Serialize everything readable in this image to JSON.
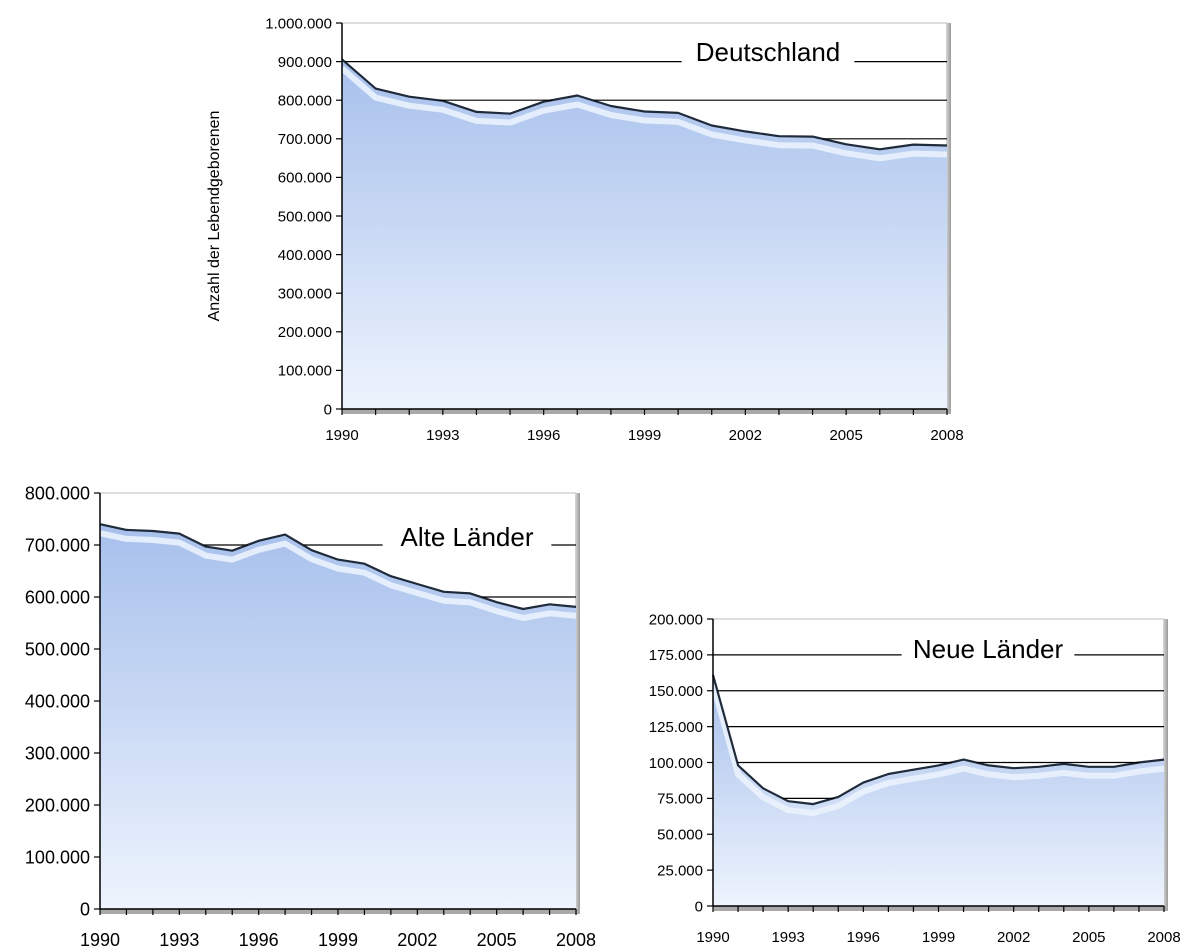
{
  "chart_data": [
    {
      "type": "area",
      "title": "Deutschland",
      "ylabel": "Anzahl der Lebendgeborenen",
      "xlabel": "",
      "ylim": [
        0,
        1000000
      ],
      "yticks": [
        0,
        100000,
        200000,
        300000,
        400000,
        500000,
        600000,
        700000,
        800000,
        900000,
        1000000
      ],
      "ytick_labels": [
        "0",
        "100.000",
        "200.000",
        "300.000",
        "400.000",
        "500.000",
        "600.000",
        "700.000",
        "800.000",
        "900.000",
        "1.000.000"
      ],
      "xticks": [
        "1990",
        "1993",
        "1996",
        "1999",
        "2002",
        "2005",
        "2008"
      ],
      "x": [
        1990,
        1991,
        1992,
        1993,
        1994,
        1995,
        1996,
        1997,
        1998,
        1999,
        2000,
        2001,
        2002,
        2003,
        2004,
        2005,
        2006,
        2007,
        2008
      ],
      "values": [
        905675,
        830019,
        809114,
        798447,
        769603,
        765221,
        796013,
        812173,
        785034,
        770744,
        766999,
        734475,
        719250,
        706721,
        705622,
        685795,
        672724,
        684862,
        682514
      ],
      "grid_values": [
        700000,
        800000,
        900000
      ],
      "color": "#aec6ef"
    },
    {
      "type": "area",
      "title": "Alte Länder",
      "ylabel": "",
      "xlabel": "",
      "ylim": [
        0,
        800000
      ],
      "yticks": [
        0,
        100000,
        200000,
        300000,
        400000,
        500000,
        600000,
        700000,
        800000
      ],
      "ytick_labels": [
        "0",
        "100.000",
        "200.000",
        "300.000",
        "400.000",
        "500.000",
        "600.000",
        "700.000",
        "800.000"
      ],
      "xticks": [
        "1990",
        "1993",
        "1996",
        "1999",
        "2002",
        "2005",
        "2008"
      ],
      "x": [
        1990,
        1991,
        1992,
        1993,
        1994,
        1995,
        1996,
        1997,
        1998,
        1999,
        2000,
        2001,
        2002,
        2003,
        2004,
        2005,
        2006,
        2007,
        2008
      ],
      "values": [
        740000,
        729000,
        727000,
        722000,
        697000,
        689000,
        708000,
        720000,
        690000,
        672000,
        664000,
        640000,
        625000,
        610000,
        607000,
        590000,
        577000,
        586000,
        581000
      ],
      "grid_values": [
        600000,
        700000
      ],
      "color": "#aec6ef"
    },
    {
      "type": "area",
      "title": "Neue Länder",
      "ylabel": "",
      "xlabel": "",
      "ylim": [
        0,
        200000
      ],
      "yticks": [
        0,
        25000,
        50000,
        75000,
        100000,
        125000,
        150000,
        175000,
        200000
      ],
      "ytick_labels": [
        "0",
        "25.000",
        "50.000",
        "75.000",
        "100.000",
        "125.000",
        "150.000",
        "175.000",
        "200.000"
      ],
      "xticks": [
        "1990",
        "1993",
        "1996",
        "1999",
        "2002",
        "2005",
        "2008"
      ],
      "x": [
        1990,
        1991,
        1992,
        1993,
        1994,
        1995,
        1996,
        1997,
        1998,
        1999,
        2000,
        2001,
        2002,
        2003,
        2004,
        2005,
        2006,
        2007,
        2008
      ],
      "values": [
        161000,
        98000,
        82000,
        73000,
        71000,
        76000,
        86000,
        92000,
        95000,
        98000,
        102000,
        98000,
        96000,
        97000,
        99000,
        97000,
        97000,
        100000,
        102000
      ],
      "grid_values": [
        75000,
        100000,
        125000,
        150000,
        175000
      ],
      "color": "#aec6ef"
    }
  ]
}
